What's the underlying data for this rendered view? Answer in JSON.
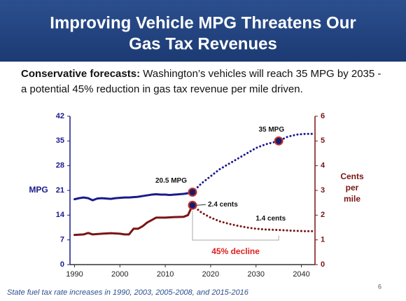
{
  "title_lines": [
    "Improving Vehicle MPG Threatens Our",
    "Gas Tax Revenues"
  ],
  "subtitle": {
    "lead": "Conservative forecasts:",
    "lines": [
      "Washington’s vehicles will reach 35 MPG by 2035 -",
      "a potential 45% reduction in gas tax revenue per mile driven."
    ]
  },
  "chart_data": {
    "type": "line",
    "ylabel": "MPG",
    "y2label": [
      "Cents",
      "per",
      "mile"
    ],
    "xlim": [
      1989,
      2043
    ],
    "xticks": [
      1990,
      2000,
      2010,
      2020,
      2030,
      2040
    ],
    "ylim": [
      0,
      42
    ],
    "yticks": [
      0,
      7,
      14,
      21,
      28,
      35,
      42
    ],
    "y2lim": [
      0,
      6
    ],
    "y2ticks": [
      0,
      1,
      2,
      3,
      4,
      5,
      6
    ],
    "grid": false,
    "series": [
      {
        "color": "#1a1a8c",
        "axis": "y",
        "dotted": false,
        "highlight": [],
        "x": [
          1990,
          1991,
          1992,
          1993,
          1994,
          1995,
          1996,
          1997,
          1998,
          1999,
          2000,
          2001,
          2002,
          2003,
          2004,
          2005,
          2006,
          2007,
          2008,
          2009,
          2010,
          2011,
          2012,
          2013,
          2014,
          2015,
          2016
        ],
        "values": [
          18.5,
          18.8,
          19,
          18.8,
          18.2,
          18.7,
          18.8,
          18.7,
          18.6,
          18.8,
          18.9,
          19,
          19,
          19.1,
          19.2,
          19.4,
          19.6,
          19.8,
          19.9,
          19.8,
          19.8,
          19.7,
          19.8,
          19.9,
          20,
          20.2,
          20.5
        ]
      },
      {
        "color": "#1a1a8c",
        "axis": "y",
        "dotted": true,
        "highlight": [
          0,
          9
        ],
        "x": [
          2016,
          2018,
          2020,
          2022,
          2024,
          2026,
          2028,
          2030,
          2032,
          2035,
          2037,
          2039,
          2041,
          2043
        ],
        "values": [
          20.5,
          23,
          25,
          27,
          28.5,
          30,
          31.5,
          33,
          34,
          35,
          36.2,
          36.8,
          37,
          37
        ]
      },
      {
        "color": "#7a1414",
        "axis": "y2",
        "dotted": false,
        "highlight": [],
        "x": [
          1990,
          1992,
          1993,
          1994,
          1996,
          1998,
          2000,
          2001,
          2002,
          2003,
          2004,
          2005,
          2006,
          2007,
          2008,
          2009,
          2010,
          2012,
          2014,
          2015,
          2016
        ],
        "values": [
          1.2,
          1.22,
          1.28,
          1.22,
          1.25,
          1.27,
          1.25,
          1.22,
          1.22,
          1.45,
          1.45,
          1.55,
          1.7,
          1.8,
          1.9,
          1.9,
          1.9,
          1.92,
          1.93,
          2.0,
          2.4
        ]
      },
      {
        "color": "#7a1414",
        "axis": "y2",
        "dotted": true,
        "highlight": [
          0
        ],
        "x": [
          2016,
          2018,
          2020,
          2022,
          2024,
          2026,
          2028,
          2030,
          2032,
          2035,
          2038,
          2041,
          2043
        ],
        "values": [
          2.4,
          2.1,
          1.9,
          1.75,
          1.65,
          1.57,
          1.5,
          1.45,
          1.42,
          1.4,
          1.37,
          1.35,
          1.35
        ]
      }
    ],
    "annotations": [
      "20.5 MPG",
      "35 MPG",
      "2.4 cents",
      "1.4 cents",
      "45% decline"
    ]
  },
  "footnote": "State fuel tax rate increases in 1990, 2003, 2005-2008, and 2015-2016",
  "page_number": "6"
}
